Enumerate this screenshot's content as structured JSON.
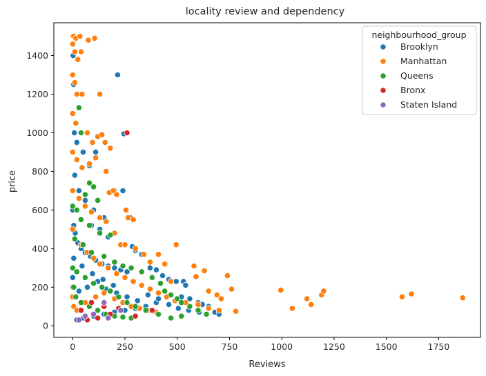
{
  "chart_data": {
    "type": "scatter",
    "title": "locality review and dependency",
    "xlabel": "Reviews",
    "ylabel": "price",
    "xlim": [
      -90,
      1950
    ],
    "ylim": [
      -60,
      1570
    ],
    "xticks": [
      0,
      250,
      500,
      750,
      1000,
      1250,
      1500,
      1750
    ],
    "yticks": [
      0,
      200,
      400,
      600,
      800,
      1000,
      1200,
      1400
    ],
    "grid": false,
    "legend": {
      "title": "neighbourhood_group",
      "placement": "top-right"
    },
    "series": [
      {
        "name": "Brooklyn",
        "color": "#1f77b4",
        "points": [
          [
            0,
            1500
          ],
          [
            2,
            1400
          ],
          [
            5,
            1250
          ],
          [
            8,
            1000
          ],
          [
            20,
            950
          ],
          [
            50,
            900
          ],
          [
            80,
            830
          ],
          [
            110,
            900
          ],
          [
            10,
            780
          ],
          [
            30,
            700
          ],
          [
            60,
            650
          ],
          [
            100,
            600
          ],
          [
            150,
            560
          ],
          [
            200,
            700
          ],
          [
            240,
            700
          ],
          [
            275,
            560
          ],
          [
            215,
            1300
          ],
          [
            245,
            995
          ],
          [
            90,
            520
          ],
          [
            130,
            500
          ],
          [
            170,
            460
          ],
          [
            0,
            600
          ],
          [
            5,
            520
          ],
          [
            12,
            480
          ],
          [
            25,
            430
          ],
          [
            40,
            400
          ],
          [
            60,
            380
          ],
          [
            85,
            360
          ],
          [
            110,
            340
          ],
          [
            140,
            320
          ],
          [
            170,
            310
          ],
          [
            200,
            300
          ],
          [
            230,
            290
          ],
          [
            260,
            280
          ],
          [
            285,
            410
          ],
          [
            300,
            390
          ],
          [
            330,
            370
          ],
          [
            370,
            300
          ],
          [
            400,
            290
          ],
          [
            430,
            260
          ],
          [
            460,
            240
          ],
          [
            495,
            230
          ],
          [
            530,
            230
          ],
          [
            540,
            210
          ],
          [
            520,
            150
          ],
          [
            560,
            140
          ],
          [
            600,
            120
          ],
          [
            620,
            110
          ],
          [
            650,
            100
          ],
          [
            680,
            70
          ],
          [
            700,
            60
          ],
          [
            450,
            150
          ],
          [
            400,
            120
          ],
          [
            350,
            100
          ],
          [
            300,
            90
          ],
          [
            250,
            80
          ],
          [
            200,
            70
          ],
          [
            150,
            60
          ],
          [
            100,
            50
          ],
          [
            50,
            40
          ],
          [
            20,
            30
          ],
          [
            0,
            200
          ],
          [
            0,
            250
          ],
          [
            0,
            300
          ],
          [
            10,
            150
          ],
          [
            30,
            180
          ],
          [
            70,
            200
          ],
          [
            120,
            230
          ],
          [
            160,
            190
          ],
          [
            210,
            170
          ],
          [
            260,
            150
          ],
          [
            310,
            130
          ],
          [
            360,
            160
          ],
          [
            410,
            140
          ],
          [
            460,
            110
          ],
          [
            505,
            90
          ],
          [
            555,
            80
          ],
          [
            605,
            70
          ],
          [
            5,
            350
          ],
          [
            45,
            310
          ],
          [
            95,
            270
          ],
          [
            145,
            240
          ],
          [
            195,
            210
          ]
        ]
      },
      {
        "name": "Manhattan",
        "color": "#ff7f0e",
        "points": [
          [
            0,
            1500
          ],
          [
            5,
            1500
          ],
          [
            15,
            1490
          ],
          [
            35,
            1500
          ],
          [
            75,
            1480
          ],
          [
            105,
            1490
          ],
          [
            0,
            1460
          ],
          [
            10,
            1420
          ],
          [
            40,
            1420
          ],
          [
            25,
            1380
          ],
          [
            0,
            1300
          ],
          [
            10,
            1260
          ],
          [
            20,
            1200
          ],
          [
            45,
            1200
          ],
          [
            130,
            1200
          ],
          [
            0,
            1100
          ],
          [
            15,
            1050
          ],
          [
            40,
            1000
          ],
          [
            70,
            1000
          ],
          [
            95,
            950
          ],
          [
            120,
            980
          ],
          [
            140,
            990
          ],
          [
            155,
            950
          ],
          [
            180,
            920
          ],
          [
            0,
            900
          ],
          [
            20,
            860
          ],
          [
            45,
            820
          ],
          [
            80,
            840
          ],
          [
            110,
            870
          ],
          [
            160,
            800
          ],
          [
            175,
            690
          ],
          [
            195,
            700
          ],
          [
            210,
            680
          ],
          [
            255,
            600
          ],
          [
            265,
            560
          ],
          [
            290,
            550
          ],
          [
            0,
            700
          ],
          [
            30,
            660
          ],
          [
            60,
            620
          ],
          [
            90,
            590
          ],
          [
            130,
            560
          ],
          [
            160,
            540
          ],
          [
            200,
            480
          ],
          [
            230,
            420
          ],
          [
            250,
            420
          ],
          [
            300,
            400
          ],
          [
            340,
            370
          ],
          [
            370,
            330
          ],
          [
            410,
            370
          ],
          [
            440,
            320
          ],
          [
            470,
            230
          ],
          [
            495,
            420
          ],
          [
            580,
            310
          ],
          [
            590,
            255
          ],
          [
            630,
            285
          ],
          [
            650,
            180
          ],
          [
            690,
            160
          ],
          [
            710,
            140
          ],
          [
            740,
            260
          ],
          [
            760,
            190
          ],
          [
            780,
            75
          ],
          [
            995,
            185
          ],
          [
            1050,
            90
          ],
          [
            1120,
            140
          ],
          [
            1140,
            110
          ],
          [
            1190,
            160
          ],
          [
            1200,
            180
          ],
          [
            1575,
            150
          ],
          [
            1620,
            165
          ],
          [
            1865,
            145
          ],
          [
            0,
            500
          ],
          [
            10,
            450
          ],
          [
            40,
            420
          ],
          [
            70,
            380
          ],
          [
            100,
            350
          ],
          [
            130,
            320
          ],
          [
            170,
            300
          ],
          [
            210,
            270
          ],
          [
            250,
            250
          ],
          [
            290,
            230
          ],
          [
            330,
            210
          ],
          [
            370,
            190
          ],
          [
            410,
            170
          ],
          [
            450,
            150
          ],
          [
            490,
            130
          ],
          [
            540,
            120
          ],
          [
            600,
            110
          ],
          [
            650,
            90
          ],
          [
            700,
            80
          ],
          [
            0,
            150
          ],
          [
            5,
            100
          ],
          [
            20,
            80
          ],
          [
            60,
            120
          ],
          [
            110,
            150
          ],
          [
            150,
            170
          ],
          [
            200,
            140
          ],
          [
            240,
            120
          ],
          [
            280,
            100
          ],
          [
            320,
            90
          ],
          [
            360,
            80
          ],
          [
            400,
            70
          ]
        ]
      },
      {
        "name": "Queens",
        "color": "#2ca02c",
        "points": [
          [
            30,
            1130
          ],
          [
            40,
            1000
          ],
          [
            80,
            740
          ],
          [
            100,
            720
          ],
          [
            60,
            680
          ],
          [
            120,
            650
          ],
          [
            0,
            620
          ],
          [
            20,
            600
          ],
          [
            40,
            550
          ],
          [
            80,
            520
          ],
          [
            130,
            480
          ],
          [
            180,
            470
          ],
          [
            10,
            450
          ],
          [
            50,
            420
          ],
          [
            90,
            380
          ],
          [
            150,
            360
          ],
          [
            200,
            330
          ],
          [
            240,
            310
          ],
          [
            280,
            300
          ],
          [
            330,
            280
          ],
          [
            380,
            250
          ],
          [
            420,
            220
          ],
          [
            440,
            180
          ],
          [
            470,
            160
          ],
          [
            500,
            140
          ],
          [
            520,
            120
          ],
          [
            560,
            100
          ],
          [
            600,
            80
          ],
          [
            640,
            60
          ],
          [
            520,
            50
          ],
          [
            470,
            40
          ],
          [
            410,
            60
          ],
          [
            350,
            80
          ],
          [
            300,
            100
          ],
          [
            260,
            120
          ],
          [
            220,
            150
          ],
          [
            180,
            180
          ],
          [
            140,
            200
          ],
          [
            100,
            220
          ],
          [
            60,
            250
          ],
          [
            20,
            280
          ],
          [
            0,
            300
          ],
          [
            5,
            200
          ],
          [
            15,
            150
          ],
          [
            40,
            120
          ],
          [
            80,
            100
          ],
          [
            120,
            80
          ],
          [
            160,
            60
          ],
          [
            200,
            50
          ],
          [
            240,
            45
          ],
          [
            280,
            40
          ]
        ]
      },
      {
        "name": "Bronx",
        "color": "#d62728",
        "points": [
          [
            260,
            1000
          ],
          [
            70,
            30
          ],
          [
            120,
            40
          ],
          [
            180,
            60
          ],
          [
            300,
            50
          ],
          [
            380,
            80
          ],
          [
            40,
            80
          ],
          [
            150,
            100
          ],
          [
            90,
            120
          ],
          [
            220,
            90
          ]
        ]
      },
      {
        "name": "Staten Island",
        "color": "#9467bd",
        "points": [
          [
            230,
            80
          ],
          [
            170,
            40
          ],
          [
            30,
            30
          ],
          [
            100,
            60
          ],
          [
            60,
            50
          ],
          [
            150,
            120
          ]
        ]
      }
    ]
  }
}
